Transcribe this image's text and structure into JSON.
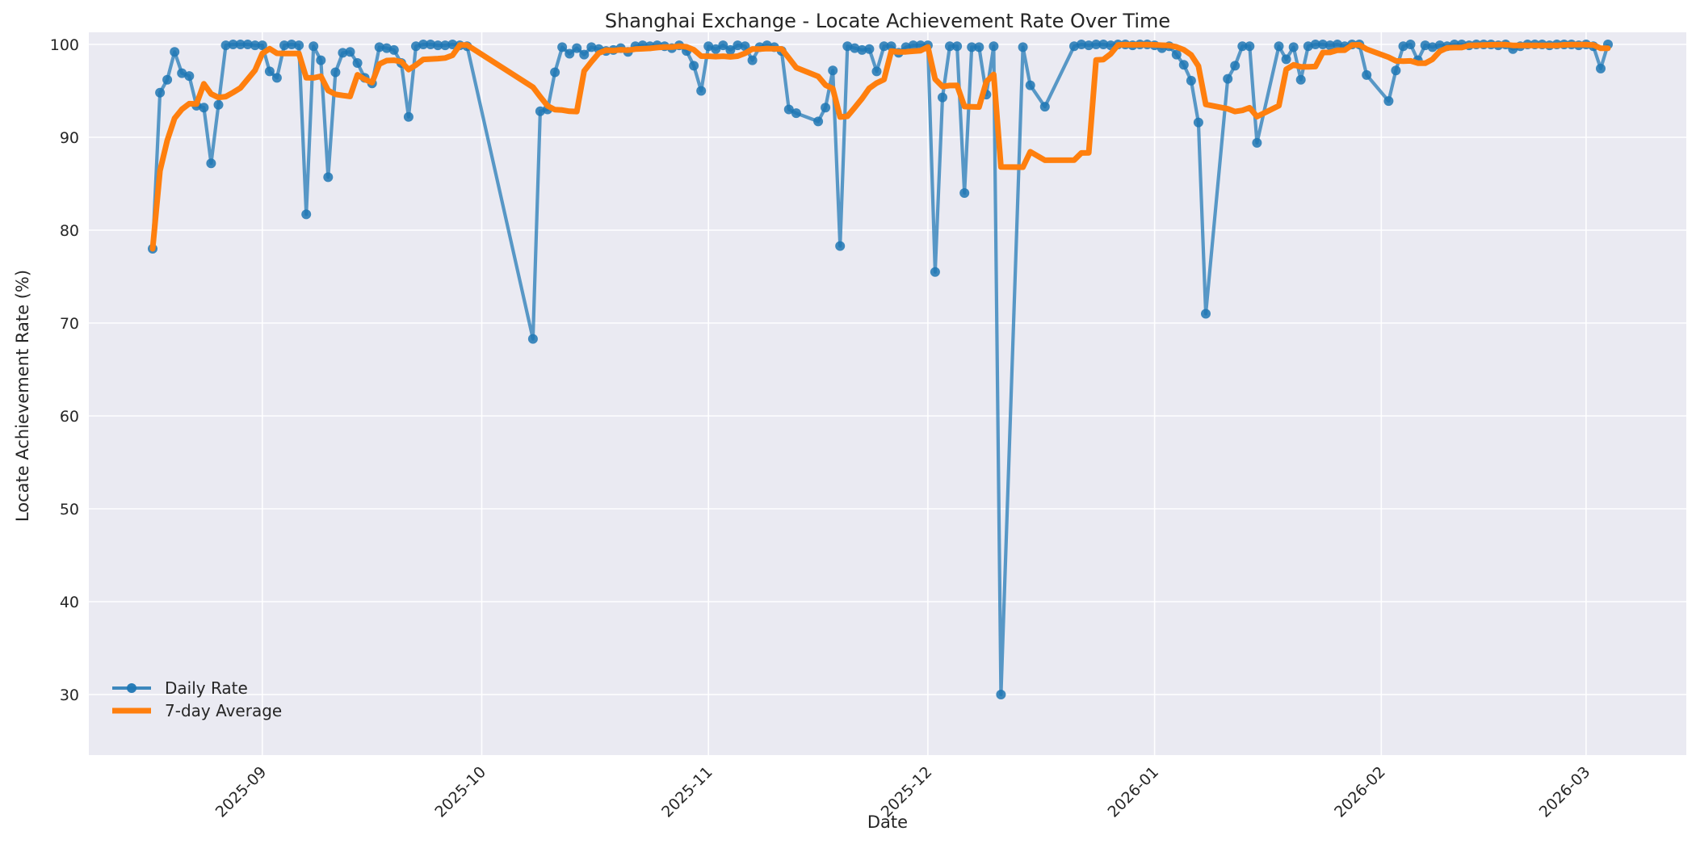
{
  "title": "Shanghai Exchange - Locate Achievement Rate Over Time",
  "axes": {
    "xlabel": "Date",
    "ylabel": "Locate Achievement Rate (%)",
    "y_ticks": [
      30,
      40,
      50,
      60,
      70,
      80,
      90,
      100
    ],
    "x_ticks": [
      "2025-09",
      "2025-10",
      "2025-11",
      "2025-12",
      "2026-01",
      "2026-02",
      "2026-03"
    ],
    "x_tick_dates": [
      "2025-09-01",
      "2025-10-01",
      "2025-11-01",
      "2025-12-01",
      "2026-01-01",
      "2026-02-01",
      "2026-03-01"
    ]
  },
  "chart_data": {
    "type": "line",
    "title": "Shanghai Exchange - Locate Achievement Rate Over Time",
    "xlabel": "Date",
    "ylabel": "Locate Achievement Rate (%)",
    "ylim": [
      23.5,
      101.3
    ],
    "grid": true,
    "legend_position": "lower-left",
    "start_date": "2025-08-17",
    "end_date": "2026-03-04",
    "note_gaps": "null entries are dates with no data (line connects across them)",
    "style": {
      "plot_background": "#eaeaf2",
      "grid_color": "#ffffff",
      "text_color": "#262626",
      "figure_background": "#ffffff"
    },
    "series": [
      {
        "name": "Daily Rate",
        "color": "#1f77b4",
        "style": "line+markers",
        "values": [
          78.0,
          94.8,
          96.2,
          99.2,
          96.9,
          96.6,
          93.4,
          93.2,
          87.2,
          93.5,
          99.9,
          100,
          100,
          100,
          99.9,
          99.9,
          97.1,
          96.4,
          99.9,
          100,
          99.9,
          81.7,
          99.8,
          98.3,
          85.7,
          97.0,
          99.1,
          99.2,
          98.0,
          96.4,
          95.8,
          99.7,
          99.6,
          99.4,
          98.0,
          92.2,
          99.8,
          100,
          100,
          99.9,
          99.9,
          100,
          99.9,
          99.8,
          null,
          null,
          null,
          null,
          null,
          null,
          null,
          null,
          68.3,
          92.8,
          93.0,
          97.0,
          99.7,
          99.0,
          99.6,
          98.9,
          99.7,
          99.5,
          99.3,
          99.4,
          99.6,
          99.2,
          99.8,
          99.9,
          99.8,
          99.9,
          99.8,
          99.6,
          99.9,
          99.3,
          97.7,
          95.0,
          99.8,
          99.5,
          99.9,
          99.4,
          99.9,
          99.8,
          98.3,
          99.7,
          99.9,
          99.7,
          99.3,
          93.0,
          92.6,
          null,
          null,
          91.7,
          93.2,
          97.2,
          78.3,
          99.8,
          99.6,
          99.4,
          99.5,
          97.1,
          99.8,
          99.8,
          99.1,
          99.7,
          99.9,
          99.9,
          99.9,
          75.5,
          94.3,
          99.8,
          99.8,
          84.0,
          99.7,
          99.7,
          94.6,
          99.8,
          30.0,
          null,
          null,
          99.7,
          95.6,
          null,
          93.3,
          null,
          null,
          null,
          99.8,
          100,
          99.9,
          100,
          100,
          99.9,
          100,
          100,
          99.9,
          100,
          100,
          99.9,
          99.6,
          99.8,
          98.9,
          97.8,
          96.1,
          91.6,
          71.0,
          null,
          null,
          96.3,
          97.7,
          99.8,
          99.8,
          89.4,
          null,
          null,
          99.8,
          98.4,
          99.7,
          96.2,
          99.8,
          100,
          100,
          99.9,
          100,
          99.8,
          100,
          100,
          96.7,
          null,
          null,
          93.9,
          97.2,
          99.8,
          100,
          98.3,
          99.9,
          99.7,
          99.9,
          99.8,
          100,
          100,
          99.9,
          100,
          100,
          100,
          99.9,
          100,
          99.5,
          99.8,
          100,
          100,
          100,
          99.9,
          100,
          100,
          100,
          99.9,
          100,
          99.8,
          97.4,
          100
        ]
      },
      {
        "name": "7-day Average",
        "color": "#ff7f0e",
        "style": "thick-line",
        "derived": "rolling mean of Daily Rate, window 7 rows, min_periods 1",
        "values": "computed-from-daily-rate"
      }
    ]
  }
}
